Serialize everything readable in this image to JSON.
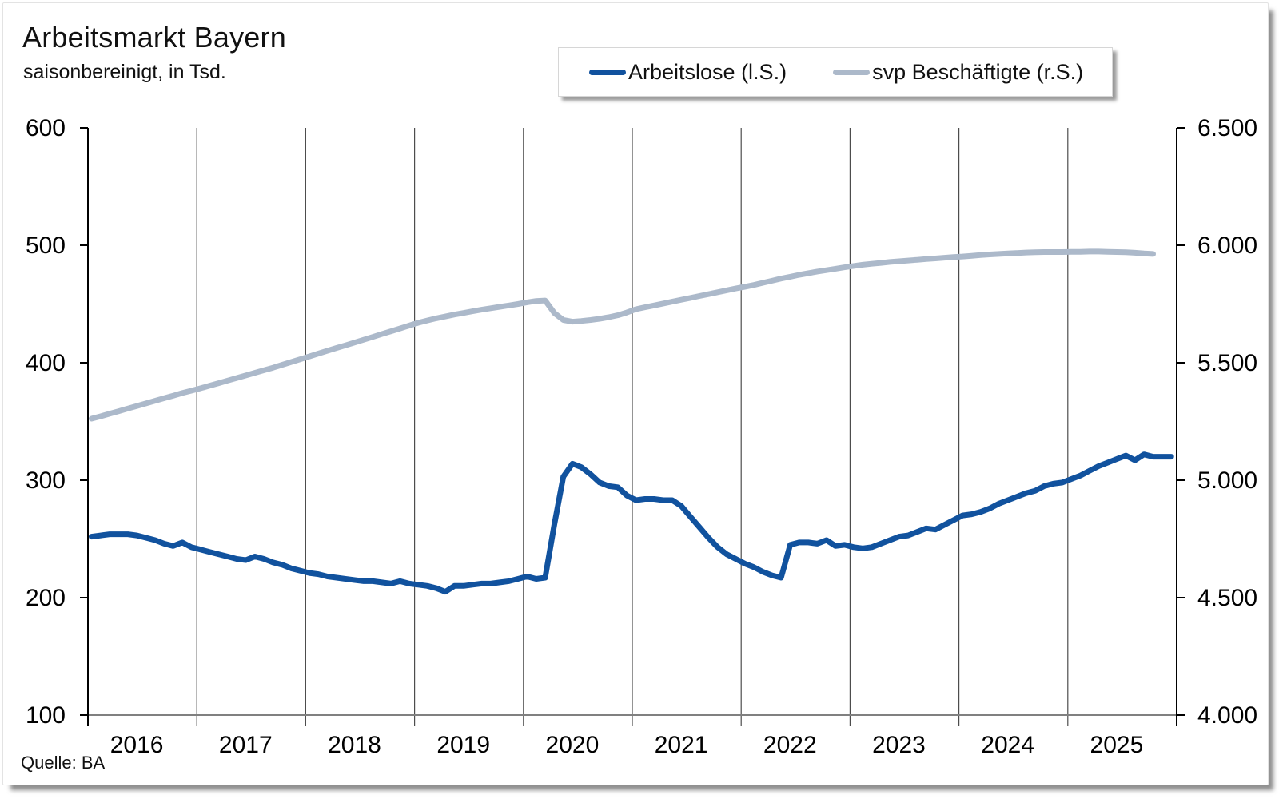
{
  "header": {
    "title": "Arbeitsmarkt Bayern",
    "subtitle": "saisonbereinigt, in Tsd."
  },
  "footer": {
    "source": "Quelle: BA"
  },
  "legend": {
    "items": [
      {
        "label": "Arbeitslose (l.S.)",
        "color": "#11529E"
      },
      {
        "label": "svp Beschäftigte (r.S.)",
        "color": "#ACB9CA"
      }
    ]
  },
  "chart_data": {
    "type": "line",
    "title": "Arbeitsmarkt Bayern",
    "subtitle": "saisonbereinigt, in Tsd.",
    "frequency": "monthly",
    "x_start": "2016-01",
    "x_year_labels": [
      "2016",
      "2017",
      "2018",
      "2019",
      "2020",
      "2021",
      "2022",
      "2023",
      "2024",
      "2025"
    ],
    "grid": "vertical-year-lines",
    "legend_position": "top-right",
    "left_axis": {
      "min": 100,
      "max": 600,
      "tick_labels": [
        "600",
        "500",
        "400",
        "300",
        "200",
        "100"
      ],
      "tick_values": [
        600,
        500,
        400,
        300,
        200,
        100
      ]
    },
    "right_axis": {
      "min": 4000,
      "max": 6500,
      "tick_labels": [
        "6.500",
        "6.000",
        "5.500",
        "5.000",
        "4.500",
        "4.000"
      ],
      "tick_values": [
        6500,
        6000,
        5500,
        5000,
        4500,
        4000
      ]
    },
    "series": [
      {
        "name": "Arbeitslose (l.S.)",
        "axis": "left",
        "color": "#11529E",
        "values": [
          252,
          253,
          254,
          254,
          254,
          253,
          251,
          249,
          246,
          244,
          247,
          243,
          241,
          239,
          237,
          235,
          233,
          232,
          235,
          233,
          230,
          228,
          225,
          223,
          221,
          220,
          218,
          217,
          216,
          215,
          214,
          214,
          213,
          212,
          214,
          212,
          211,
          210,
          208,
          205,
          210,
          210,
          211,
          212,
          212,
          213,
          214,
          216,
          218,
          216,
          217,
          262,
          303,
          314,
          311,
          305,
          298,
          295,
          294,
          287,
          283,
          284,
          284,
          283,
          283,
          278,
          269,
          260,
          251,
          243,
          237,
          233,
          229,
          226,
          222,
          219,
          217,
          245,
          247,
          247,
          246,
          249,
          244,
          245,
          243,
          242,
          243,
          246,
          249,
          252,
          253,
          256,
          259,
          258,
          262,
          266,
          270,
          271,
          273,
          276,
          280,
          283,
          286,
          289,
          291,
          295,
          297,
          298,
          301,
          304,
          308,
          312,
          315,
          318,
          321,
          317,
          322,
          320,
          320,
          320
        ]
      },
      {
        "name": "svp Beschäftigte (r.S.)",
        "axis": "right",
        "color": "#ACB9CA",
        "values": [
          5262,
          5272,
          5283,
          5294,
          5305,
          5316,
          5327,
          5338,
          5349,
          5360,
          5371,
          5381,
          5391,
          5402,
          5413,
          5424,
          5435,
          5446,
          5457,
          5468,
          5479,
          5491,
          5503,
          5515,
          5527,
          5539,
          5551,
          5563,
          5574,
          5586,
          5598,
          5610,
          5622,
          5634,
          5646,
          5658,
          5670,
          5680,
          5689,
          5697,
          5705,
          5712,
          5719,
          5726,
          5732,
          5738,
          5744,
          5750,
          5757,
          5763,
          5765,
          5712,
          5682,
          5675,
          5678,
          5682,
          5687,
          5694,
          5702,
          5714,
          5728,
          5736,
          5744,
          5752,
          5760,
          5768,
          5776,
          5784,
          5792,
          5800,
          5808,
          5816,
          5823,
          5831,
          5840,
          5849,
          5858,
          5866,
          5874,
          5881,
          5888,
          5894,
          5900,
          5906,
          5912,
          5917,
          5921,
          5925,
          5929,
          5932,
          5935,
          5938,
          5941,
          5944,
          5947,
          5950,
          5952,
          5955,
          5958,
          5961,
          5963,
          5965,
          5967,
          5969,
          5970,
          5971,
          5971,
          5971,
          5972,
          5972,
          5973,
          5973,
          5972,
          5971,
          5970,
          5968,
          5965,
          5963
        ]
      }
    ]
  }
}
